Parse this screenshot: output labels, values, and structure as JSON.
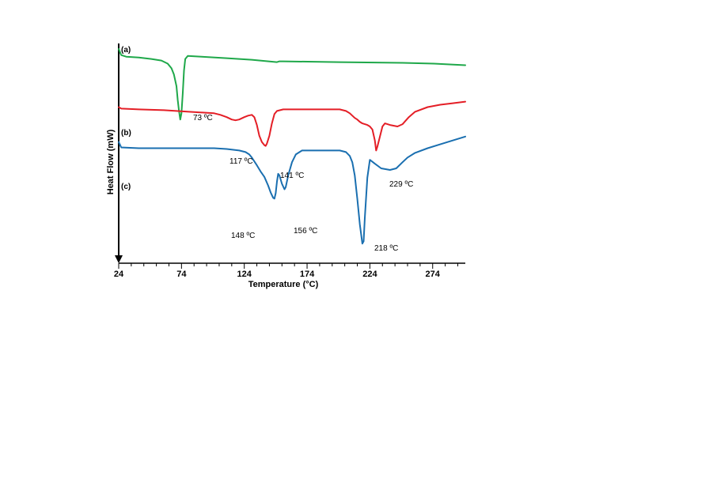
{
  "chart_data": {
    "type": "line",
    "title": "",
    "xlabel": "Temperature (°C)",
    "ylabel": "Heat Flow (mW)",
    "xlim": [
      24,
      300
    ],
    "xticks": [
      24,
      74,
      124,
      174,
      224,
      274
    ],
    "y_units": "relative heat flow (arbitrary offset, no numeric ticks)",
    "grid": false,
    "series": [
      {
        "label": "(a)",
        "color": "#1fa84a",
        "x": [
          24,
          26,
          30,
          40,
          50,
          58,
          63,
          66,
          68,
          70,
          71,
          72,
          73,
          74,
          75,
          76,
          77,
          79,
          90,
          110,
          130,
          150,
          152,
          155,
          200,
          250,
          275,
          300
        ],
        "y": [
          1.38,
          1.3,
          1.28,
          1.27,
          1.25,
          1.23,
          1.19,
          1.13,
          1.05,
          0.9,
          0.72,
          0.58,
          0.47,
          0.55,
          0.8,
          1.1,
          1.25,
          1.29,
          1.28,
          1.26,
          1.24,
          1.21,
          1.22,
          1.22,
          1.21,
          1.2,
          1.19,
          1.17
        ]
      },
      {
        "label": "(b)",
        "color": "#e41e26",
        "x": [
          24,
          26,
          40,
          60,
          80,
          100,
          105,
          110,
          114,
          117,
          120,
          124,
          127,
          130,
          132,
          134,
          136,
          138,
          140,
          141,
          142,
          144,
          146,
          148,
          150,
          155,
          170,
          190,
          200,
          205,
          208,
          210,
          212,
          214,
          216,
          218,
          220,
          222,
          224,
          226,
          228,
          229,
          230,
          232,
          234,
          236,
          240,
          246,
          250,
          255,
          260,
          270,
          280,
          290,
          300
        ],
        "y": [
          0.63,
          0.61,
          0.6,
          0.59,
          0.57,
          0.55,
          0.53,
          0.5,
          0.47,
          0.46,
          0.47,
          0.5,
          0.52,
          0.53,
          0.5,
          0.4,
          0.26,
          0.18,
          0.14,
          0.13,
          0.16,
          0.26,
          0.42,
          0.54,
          0.58,
          0.6,
          0.6,
          0.6,
          0.6,
          0.58,
          0.55,
          0.52,
          0.49,
          0.47,
          0.44,
          0.42,
          0.41,
          0.4,
          0.38,
          0.34,
          0.2,
          0.07,
          0.12,
          0.25,
          0.38,
          0.42,
          0.4,
          0.38,
          0.41,
          0.5,
          0.57,
          0.63,
          0.66,
          0.68,
          0.7
        ]
      },
      {
        "label": "(c)",
        "color": "#1a6fb0",
        "x": [
          24,
          26,
          40,
          60,
          80,
          100,
          110,
          120,
          125,
          128,
          130,
          134,
          137,
          140,
          143,
          145,
          147,
          148,
          149,
          150,
          151,
          152,
          154,
          156,
          157,
          159,
          162,
          165,
          170,
          180,
          190,
          200,
          205,
          208,
          210,
          212,
          214,
          216,
          218,
          219,
          220,
          222,
          224,
          228,
          233,
          240,
          245,
          250,
          254,
          260,
          270,
          280,
          290,
          300
        ],
        "y": [
          0.18,
          0.11,
          0.1,
          0.1,
          0.1,
          0.1,
          0.09,
          0.07,
          0.05,
          0.02,
          -0.02,
          -0.12,
          -0.2,
          -0.27,
          -0.38,
          -0.47,
          -0.54,
          -0.55,
          -0.48,
          -0.33,
          -0.23,
          -0.25,
          -0.36,
          -0.43,
          -0.4,
          -0.25,
          -0.08,
          0.02,
          0.07,
          0.07,
          0.07,
          0.07,
          0.05,
          0.0,
          -0.08,
          -0.25,
          -0.55,
          -0.88,
          -1.13,
          -1.1,
          -0.8,
          -0.28,
          -0.05,
          -0.1,
          -0.16,
          -0.18,
          -0.16,
          -0.08,
          -0.02,
          0.04,
          0.1,
          0.15,
          0.2,
          0.25
        ]
      }
    ],
    "annotations": [
      {
        "text": "73 ºC",
        "x": 73,
        "series": "(a)"
      },
      {
        "text": "117 ºC",
        "x": 117,
        "series": "(b)"
      },
      {
        "text": "141 ºC",
        "x": 141,
        "series": "(b)"
      },
      {
        "text": "229 ºC",
        "x": 229,
        "series": "(b)"
      },
      {
        "text": "148 ºC",
        "x": 148,
        "series": "(c)"
      },
      {
        "text": "156 ºC",
        "x": 156,
        "series": "(c)"
      },
      {
        "text": "218 ºC",
        "x": 218,
        "series": "(c)"
      }
    ]
  }
}
